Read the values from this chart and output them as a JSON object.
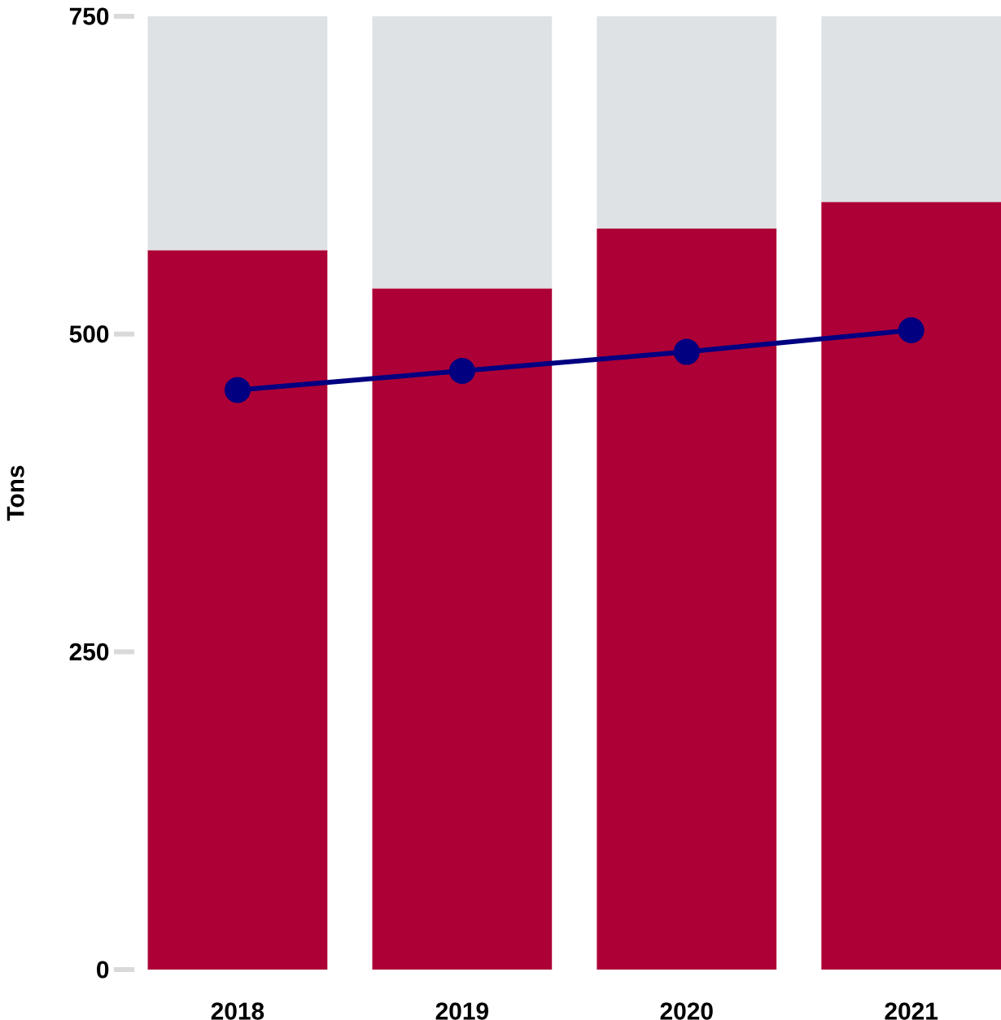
{
  "chart_data": {
    "type": "bar",
    "stacked": true,
    "ylabel": "Tons",
    "categories": [
      "2018",
      "2019",
      "2020",
      "2021"
    ],
    "ylim": [
      0,
      750
    ],
    "yticks": [
      0,
      250,
      500,
      750
    ],
    "grid": false,
    "series": [
      {
        "color": "#ad0036",
        "values": [
          566,
          536,
          583,
          604
        ]
      },
      {
        "color": "#dfe2e5",
        "values": [
          184,
          214,
          167,
          146
        ]
      },
      {
        "type": "line",
        "color": "#000080",
        "marker": "circle",
        "values": [
          456,
          471,
          486,
          503
        ]
      }
    ]
  }
}
